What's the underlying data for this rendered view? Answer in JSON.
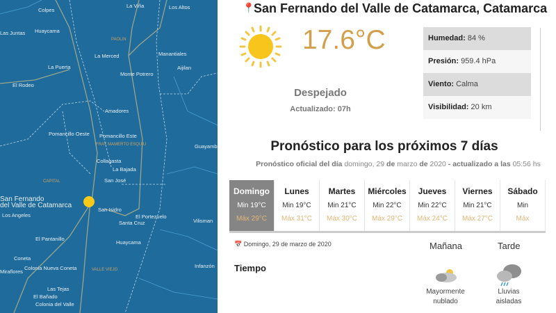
{
  "map": {
    "labels": [
      "Colpes",
      "La Viña",
      "Los Altos",
      "Las Juntas",
      "Huaycama",
      "PAOLIN",
      "La Merced",
      "Manantiales",
      "La Puerta",
      "Monte Potrero",
      "Aijilan",
      "El Rodeo",
      "Amadores",
      "Pomancillo Oeste",
      "Pomancillo Este",
      "FRAY MAMERTO ESQUIU",
      "Guayamba",
      "Collagasta",
      "La Bajada",
      "CAPITAL",
      "San José",
      "San Fernando",
      "del Valle de Catamarca",
      "Los Angeles",
      "San Isidro",
      "El Portezuelo",
      "Santa Cruz",
      "Vilisman",
      "El Pantanillo",
      "Huaycama",
      "Coneta",
      "Colonia Nueva Coneta",
      "VALLE VIEJO",
      "Infanzón",
      "Miraflores",
      "Las Tejas",
      "El Bañado",
      "Colonia del Valle"
    ],
    "background": "#1f6c9c"
  },
  "location": "San Fernando del Valle de Catamarca, Catamarca",
  "current": {
    "temp": "17.6°C",
    "condition": "Despejado",
    "updated": "Actualizado: 07h",
    "icon": "sun-icon"
  },
  "info": [
    {
      "label": "Humedad:",
      "value": " 84 %"
    },
    {
      "label": "Presión:",
      "value": " 959.4 hPa"
    },
    {
      "label": "Viento:",
      "value": " Calma"
    },
    {
      "label": "Visibilidad:",
      "value": " 20 km"
    }
  ],
  "forecast": {
    "title": "Pronóstico para los próximos 7 días",
    "sub": {
      "a": "Pronóstico oficial del día",
      "b": " domingo, 29 ",
      "c": "de",
      "d": " marzo ",
      "e": "de",
      "f": " 2020 ",
      "g": "- actualizado a las",
      "h": " 05:56 hs"
    },
    "days": [
      {
        "name": "Domingo",
        "min": "Min 19°C",
        "max": "Máx 29°C",
        "active": true
      },
      {
        "name": "Lunes",
        "min": "Min 19°C",
        "max": "Máx 31°C"
      },
      {
        "name": "Martes",
        "min": "Min 21°C",
        "max": "Máx 30°C"
      },
      {
        "name": "Miércoles",
        "min": "Min 22°C",
        "max": "Máx 29°C"
      },
      {
        "name": "Jueves",
        "min": "Min 22°C",
        "max": "Máx 24°C"
      },
      {
        "name": "Viernes",
        "min": "Min 21°C",
        "max": "Máx 27°C"
      },
      {
        "name": "Sábado",
        "min": "Min",
        "max": "Máx"
      }
    ],
    "date": "Domingo, 29 de marzo de 2020",
    "periods": [
      "Mañana",
      "Tarde"
    ],
    "row_label": "Tiempo",
    "weather": [
      {
        "line1": "Mayormente",
        "line2": "nublado",
        "icon": "partly-cloudy-icon"
      },
      {
        "line1": "Lluvias",
        "line2": "aisladas",
        "icon": "rain-cloud-icon"
      }
    ]
  }
}
